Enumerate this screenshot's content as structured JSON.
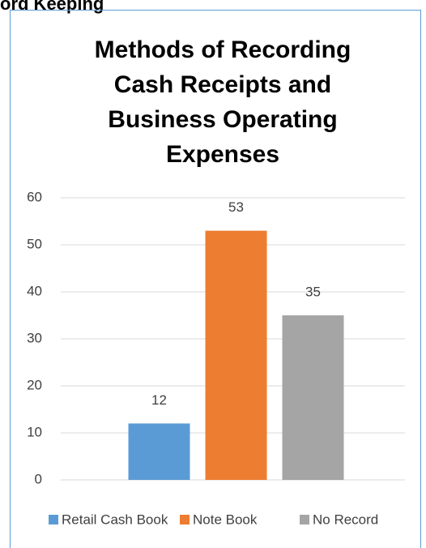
{
  "header": {
    "text": "ord Keeping"
  },
  "chart_data": {
    "type": "bar",
    "title": "Methods of Recording Cash Receipts and Business Operating Expenses",
    "categories": [
      null
    ],
    "series": [
      {
        "name": "Retail Cash Book",
        "color": "#5b9bd5",
        "values": [
          12
        ]
      },
      {
        "name": "Note Book",
        "color": "#ed7d31",
        "values": [
          53
        ]
      },
      {
        "name": "No Record",
        "color": "#a5a5a5",
        "values": [
          35
        ]
      }
    ],
    "ylim": [
      0,
      60
    ],
    "yticks": [
      0,
      10,
      20,
      30,
      40,
      50,
      60
    ],
    "grid": true,
    "legend": "bottom"
  }
}
